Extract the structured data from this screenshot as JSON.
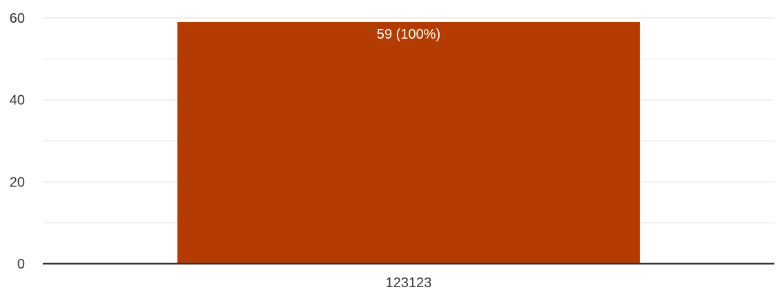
{
  "chart_data": {
    "type": "bar",
    "categories": [
      "123123"
    ],
    "values": [
      59
    ],
    "data_labels": [
      "59 (100%)"
    ],
    "ylim": [
      0,
      60
    ],
    "y_ticks": [
      0,
      20,
      40,
      60
    ],
    "minor_y_ticks": [
      10,
      30,
      50
    ],
    "grid": true,
    "bar_color": "#b43c03",
    "axis_color": "#333333",
    "grid_color": "#eeeeee"
  }
}
